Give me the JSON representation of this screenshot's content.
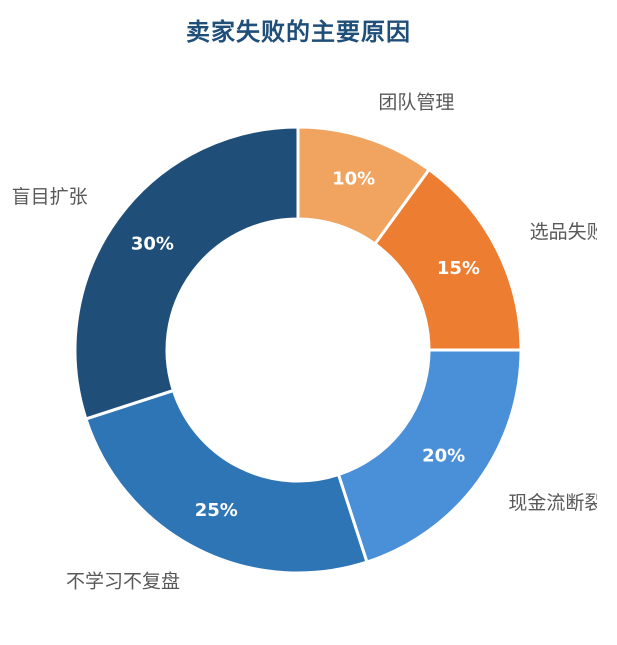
{
  "chart_data": {
    "type": "pie",
    "title": "卖家失败的主要原因",
    "donut": true,
    "categories": [
      "团队管理",
      "选品失败",
      "现金流断裂",
      "不学习不复盘",
      "盲目扩张"
    ],
    "values": [
      10,
      15,
      20,
      25,
      30
    ],
    "value_labels": [
      "10%",
      "15%",
      "20%",
      "25%",
      "30%"
    ],
    "colors": [
      "#f0a45f",
      "#ed7d31",
      "#4a90d9",
      "#2e75b6",
      "#1f4e79"
    ],
    "start_angle_deg": 0,
    "direction": "clockwise",
    "legend": "none"
  }
}
